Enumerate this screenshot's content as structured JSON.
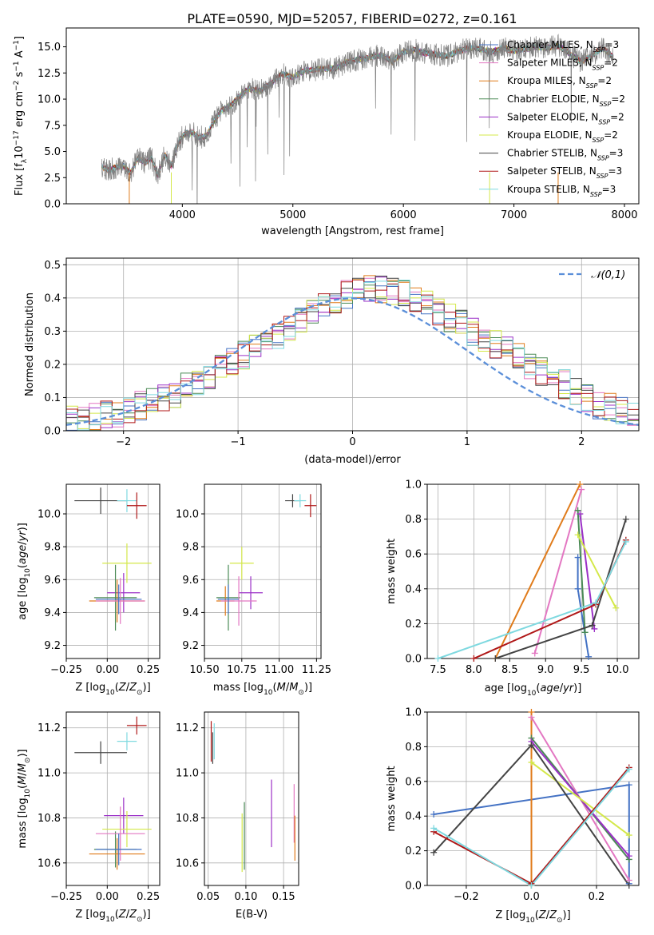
{
  "figure": {
    "title": "PLATE=0590, MJD=52057, FIBERID=0272, z=0.161"
  },
  "models": [
    {
      "label": "Chabrier MILES, N$_{SSP}$=3",
      "name": "Chabrier MILES",
      "nssp": "3",
      "color": "#4472c4"
    },
    {
      "label": "Salpeter MILES, N$_{SSP}$=2",
      "name": "Salpeter MILES",
      "nssp": "2",
      "color": "#e377c2"
    },
    {
      "label": "Kroupa MILES, N$_{SSP}$=2",
      "name": "Kroupa MILES",
      "nssp": "2",
      "color": "#e07b1a"
    },
    {
      "label": "Chabrier ELODIE, N$_{SSP}$=2",
      "name": "Chabrier ELODIE",
      "nssp": "2",
      "color": "#4a8a55"
    },
    {
      "label": "Salpeter ELODIE, N$_{SSP}$=2",
      "name": "Salpeter ELODIE",
      "nssp": "2",
      "color": "#9b30c7"
    },
    {
      "label": "Kroupa ELODIE, N$_{SSP}$=2",
      "name": "Kroupa ELODIE",
      "nssp": "2",
      "color": "#d4e84a"
    },
    {
      "label": "Chabrier STELIB, N$_{SSP}$=3",
      "name": "Chabrier STELIB",
      "nssp": "3",
      "color": "#444444"
    },
    {
      "label": "Salpeter STELIB, N$_{SSP}$=3",
      "name": "Salpeter STELIB",
      "nssp": "3",
      "color": "#b01818"
    },
    {
      "label": "Kroupa STELIB, N$_{SSP}$=3",
      "name": "Kroupa STELIB",
      "nssp": "3",
      "color": "#7fd9e0"
    }
  ],
  "chart_data": [
    {
      "id": "spectrum",
      "type": "line",
      "xlabel": "wavelength [Angstrom, rest frame]",
      "ylabel": "Flux [f_λ 10^-17 erg cm^-2 s^-1 A^-1]",
      "xlim": [
        2950,
        8130
      ],
      "ylim": [
        0,
        16.8
      ],
      "xticks": [
        4000,
        5000,
        6000,
        7000,
        8000
      ],
      "yticks": [
        0.0,
        2.5,
        5.0,
        7.5,
        10.0,
        12.5,
        15.0
      ],
      "ytick_labels": [
        "0.0",
        "2.5",
        "5.0",
        "7.5",
        "10.0",
        "12.5",
        "15.0"
      ],
      "grid": false,
      "legend": "upper right",
      "data_series": {
        "name": "data",
        "color": "#808080",
        "x": [
          3270,
          3330,
          3400,
          3470,
          3530,
          3600,
          3660,
          3720,
          3780,
          3840,
          3900,
          3960,
          4020,
          4090,
          4150,
          4220,
          4290,
          4360,
          4440,
          4520,
          4600,
          4700,
          4800,
          4900,
          5000,
          5100,
          5200,
          5300,
          5400,
          5500,
          5600,
          5700,
          5800,
          5900,
          6000,
          6100,
          6200,
          6300,
          6400,
          6500,
          6600,
          6700,
          6800,
          6900,
          7000,
          7100,
          7200,
          7300,
          7400,
          7500,
          7600,
          7700,
          7800,
          7900
        ],
        "y": [
          3.6,
          3.2,
          3.5,
          3.6,
          2.9,
          4.4,
          3.9,
          4.4,
          2.7,
          4.7,
          3.6,
          5.8,
          6.7,
          6.8,
          6.3,
          6.5,
          8.0,
          9.0,
          9.4,
          10.3,
          11.0,
          10.8,
          11.5,
          12.4,
          12.1,
          12.7,
          12.8,
          12.9,
          13.0,
          13.6,
          13.8,
          14.0,
          14.2,
          13.6,
          14.5,
          14.7,
          14.4,
          14.3,
          14.1,
          14.6,
          14.9,
          14.8,
          14.5,
          14.9,
          14.6,
          14.8,
          15.0,
          14.9,
          15.1,
          14.4,
          13.6,
          14.1,
          14.9,
          14.0
        ]
      }
    },
    {
      "id": "residual-histogram",
      "type": "histogram",
      "xlabel": "(data-model)/error",
      "ylabel": "Normed distribution",
      "xlim": [
        -2.5,
        2.5
      ],
      "ylim": [
        0,
        0.52
      ],
      "xticks": [
        -2,
        -1,
        0,
        1,
        2
      ],
      "xtick_labels": [
        "−2",
        "−1",
        "0",
        "1",
        "2"
      ],
      "yticks": [
        0.0,
        0.1,
        0.2,
        0.3,
        0.4,
        0.5
      ],
      "ytick_labels": [
        "0.0",
        "0.1",
        "0.2",
        "0.3",
        "0.4",
        "0.5"
      ],
      "grid": true,
      "legend": "upper right",
      "bin_width": 0.1,
      "bin_start": -2.5,
      "base_counts": [
        0.03,
        0.035,
        0.04,
        0.05,
        0.055,
        0.065,
        0.075,
        0.09,
        0.1,
        0.11,
        0.13,
        0.15,
        0.17,
        0.19,
        0.21,
        0.23,
        0.25,
        0.27,
        0.29,
        0.31,
        0.33,
        0.35,
        0.37,
        0.39,
        0.41,
        0.42,
        0.43,
        0.43,
        0.42,
        0.41,
        0.4,
        0.38,
        0.36,
        0.34,
        0.32,
        0.3,
        0.28,
        0.26,
        0.24,
        0.22,
        0.2,
        0.18,
        0.16,
        0.14,
        0.12,
        0.1,
        0.08,
        0.07,
        0.06,
        0.05
      ],
      "gaussian_label": "𝒩(0,1)",
      "gaussian_color": "#5b8fd9"
    },
    {
      "id": "age-vs-Z",
      "type": "scatter",
      "xlabel": "Z [log10(Z/Z_sun)]",
      "ylabel": "age  [log10(age/yr)]",
      "xlim": [
        -0.25,
        0.32
      ],
      "ylim": [
        9.12,
        10.18
      ],
      "xticks": [
        -0.25,
        0.0,
        0.25
      ],
      "xtick_labels": [
        "−0.25",
        "0.00",
        "0.25"
      ],
      "yticks": [
        9.2,
        9.4,
        9.6,
        9.8,
        10.0
      ],
      "ytick_labels": [
        "9.2",
        "9.4",
        "9.6",
        "9.8",
        "10.0"
      ],
      "grid": true,
      "points": [
        {
          "model": 6,
          "x": -0.04,
          "xerr": 0.16,
          "y": 10.08,
          "yerr": 0.08
        },
        {
          "model": 8,
          "x": 0.12,
          "xerr": 0.06,
          "y": 10.08,
          "yerr": 0.07
        },
        {
          "model": 7,
          "x": 0.18,
          "xerr": 0.06,
          "y": 10.05,
          "yerr": 0.08
        },
        {
          "model": 4,
          "x": 0.1,
          "xerr": 0.1,
          "y": 9.52,
          "yerr": 0.12
        },
        {
          "model": 5,
          "x": 0.12,
          "xerr": 0.15,
          "y": 9.7,
          "yerr": 0.12
        },
        {
          "model": 3,
          "x": 0.05,
          "xerr": 0.13,
          "y": 9.49,
          "yerr": 0.2
        },
        {
          "model": 2,
          "x": 0.06,
          "xerr": 0.17,
          "y": 9.47,
          "yerr": 0.13
        },
        {
          "model": 1,
          "x": 0.08,
          "xerr": 0.15,
          "y": 9.47,
          "yerr": 0.14
        },
        {
          "model": 0,
          "x": 0.07,
          "xerr": 0.14,
          "y": 9.48,
          "yerr": 0.09
        }
      ]
    },
    {
      "id": "age-vs-mass",
      "type": "scatter",
      "xlabel": "mass [log10(M/M_sun)]",
      "ylim": [
        9.12,
        10.18
      ],
      "xlim": [
        10.5,
        11.28
      ],
      "xticks": [
        10.5,
        10.75,
        11.0,
        11.25
      ],
      "xtick_labels": [
        "10.50",
        "10.75",
        "11.00",
        "11.25"
      ],
      "yticks": [
        9.2,
        9.4,
        9.6,
        9.8,
        10.0
      ],
      "ytick_labels": [
        "9.2",
        "9.4",
        "9.6",
        "9.8",
        "10.0"
      ],
      "grid": true,
      "points": [
        {
          "model": 6,
          "x": 11.09,
          "xerr": 0.05,
          "y": 10.08,
          "yerr": 0.04
        },
        {
          "model": 8,
          "x": 11.14,
          "xerr": 0.04,
          "y": 10.08,
          "yerr": 0.04
        },
        {
          "model": 7,
          "x": 11.21,
          "xerr": 0.04,
          "y": 10.05,
          "yerr": 0.07
        },
        {
          "model": 4,
          "x": 10.81,
          "xerr": 0.08,
          "y": 9.52,
          "yerr": 0.1
        },
        {
          "model": 5,
          "x": 10.75,
          "xerr": 0.08,
          "y": 9.7,
          "yerr": 0.1
        },
        {
          "model": 3,
          "x": 10.66,
          "xerr": 0.08,
          "y": 9.49,
          "yerr": 0.2
        },
        {
          "model": 2,
          "x": 10.64,
          "xerr": 0.06,
          "y": 9.47,
          "yerr": 0.09
        },
        {
          "model": 1,
          "x": 10.73,
          "xerr": 0.12,
          "y": 9.47,
          "yerr": 0.15
        },
        {
          "model": 0,
          "x": 10.66,
          "xerr": 0.07,
          "y": 9.48,
          "yerr": 0.09
        }
      ]
    },
    {
      "id": "weight-vs-age",
      "type": "line",
      "xlabel": "age  [log10(age/yr)]",
      "ylabel": "mass weight",
      "xlim": [
        7.35,
        10.3
      ],
      "ylim": [
        0,
        1.0
      ],
      "xticks": [
        7.5,
        8.0,
        8.5,
        9.0,
        9.5,
        10.0
      ],
      "xtick_labels": [
        "7.5",
        "8.0",
        "8.5",
        "9.0",
        "9.5",
        "10.0"
      ],
      "yticks": [
        0.0,
        0.2,
        0.4,
        0.6,
        0.8,
        1.0
      ],
      "ytick_labels": [
        "0.0",
        "0.2",
        "0.4",
        "0.6",
        "0.8",
        "1.0"
      ],
      "grid": true,
      "series": [
        {
          "model": 0,
          "x": [
            9.45,
            9.45,
            9.6
          ],
          "y": [
            0.58,
            0.4,
            0.01
          ]
        },
        {
          "model": 1,
          "x": [
            9.5,
            8.85
          ],
          "y": [
            0.97,
            0.03
          ]
        },
        {
          "model": 2,
          "x": [
            9.48,
            8.3
          ],
          "y": [
            1.0,
            0.0
          ]
        },
        {
          "model": 3,
          "x": [
            9.55,
            9.45
          ],
          "y": [
            0.15,
            0.85
          ]
        },
        {
          "model": 4,
          "x": [
            9.48,
            9.68
          ],
          "y": [
            0.83,
            0.17
          ]
        },
        {
          "model": 5,
          "x": [
            9.45,
            9.98
          ],
          "y": [
            0.71,
            0.29
          ]
        },
        {
          "model": 6,
          "x": [
            8.3,
            9.65,
            10.12
          ],
          "y": [
            0.0,
            0.19,
            0.8
          ]
        },
        {
          "model": 7,
          "x": [
            8.0,
            9.7,
            10.12
          ],
          "y": [
            0.0,
            0.31,
            0.68
          ]
        },
        {
          "model": 8,
          "x": [
            7.5,
            9.7,
            10.12
          ],
          "y": [
            0.0,
            0.32,
            0.67
          ]
        }
      ]
    },
    {
      "id": "mass-vs-Z",
      "type": "scatter",
      "xlabel": "Z [log10(Z/Z_sun)]",
      "ylabel": "mass [log10(M/M_sun)]",
      "xlim": [
        -0.25,
        0.32
      ],
      "ylim": [
        10.5,
        11.27
      ],
      "xticks": [
        -0.25,
        0.0,
        0.25
      ],
      "xtick_labels": [
        "−0.25",
        "0.00",
        "0.25"
      ],
      "yticks": [
        10.6,
        10.8,
        11.0,
        11.2
      ],
      "ytick_labels": [
        "10.6",
        "10.8",
        "11.0",
        "11.2"
      ],
      "grid": true,
      "points": [
        {
          "model": 6,
          "x": -0.04,
          "xerr": 0.16,
          "y": 11.09,
          "yerr": 0.05
        },
        {
          "model": 8,
          "x": 0.12,
          "xerr": 0.06,
          "y": 11.14,
          "yerr": 0.04
        },
        {
          "model": 7,
          "x": 0.18,
          "xerr": 0.06,
          "y": 11.21,
          "yerr": 0.04
        },
        {
          "model": 4,
          "x": 0.1,
          "xerr": 0.12,
          "y": 10.81,
          "yerr": 0.08
        },
        {
          "model": 5,
          "x": 0.12,
          "xerr": 0.15,
          "y": 10.75,
          "yerr": 0.08
        },
        {
          "model": 3,
          "x": 0.05,
          "xerr": 0.13,
          "y": 10.66,
          "yerr": 0.08
        },
        {
          "model": 2,
          "x": 0.06,
          "xerr": 0.17,
          "y": 10.64,
          "yerr": 0.07
        },
        {
          "model": 1,
          "x": 0.08,
          "xerr": 0.15,
          "y": 10.73,
          "yerr": 0.12
        },
        {
          "model": 0,
          "x": 0.07,
          "xerr": 0.14,
          "y": 10.66,
          "yerr": 0.07
        }
      ]
    },
    {
      "id": "mass-vs-ebv",
      "type": "scatter",
      "xlabel": "E(B-V)",
      "xlim": [
        0.045,
        0.17
      ],
      "ylim": [
        10.5,
        11.27
      ],
      "xticks": [
        0.05,
        0.1,
        0.15
      ],
      "xtick_labels": [
        "0.05",
        "0.10",
        "0.15"
      ],
      "yticks": [
        10.6,
        10.8,
        11.0,
        11.2
      ],
      "ytick_labels": [
        "10.6",
        "10.8",
        "11.0",
        "11.2"
      ],
      "grid": true,
      "points": [
        {
          "model": 7,
          "x": 0.054,
          "xerr": 0,
          "y": 11.14,
          "yerr": 0.09
        },
        {
          "model": 8,
          "x": 0.058,
          "xerr": 0,
          "y": 11.14,
          "yerr": 0.08
        },
        {
          "model": 6,
          "x": 0.056,
          "xerr": 0,
          "y": 11.11,
          "yerr": 0.07
        },
        {
          "model": 5,
          "x": 0.095,
          "xerr": 0,
          "y": 10.69,
          "yerr": 0.13
        },
        {
          "model": 3,
          "x": 0.098,
          "xerr": 0,
          "y": 10.72,
          "yerr": 0.15
        },
        {
          "model": 4,
          "x": 0.134,
          "xerr": 0,
          "y": 10.82,
          "yerr": 0.15
        },
        {
          "model": 1,
          "x": 0.164,
          "xerr": 0,
          "y": 10.82,
          "yerr": 0.13
        },
        {
          "model": 2,
          "x": 0.165,
          "xerr": 0,
          "y": 10.71,
          "yerr": 0.1
        }
      ]
    },
    {
      "id": "weight-vs-Z",
      "type": "line",
      "xlabel": "Z [log10(Z/Z_sun)]",
      "ylabel": "mass weight",
      "xlim": [
        -0.32,
        0.33
      ],
      "ylim": [
        0,
        1.0
      ],
      "xticks": [
        -0.2,
        0.0,
        0.2
      ],
      "xtick_labels": [
        "−0.2",
        "0.0",
        "0.2"
      ],
      "yticks": [
        0.0,
        0.2,
        0.4,
        0.6,
        0.8,
        1.0
      ],
      "ytick_labels": [
        "0.0",
        "0.2",
        "0.4",
        "0.6",
        "0.8",
        "1.0"
      ],
      "grid": true,
      "series": [
        {
          "model": 0,
          "x": [
            -0.3,
            0.3,
            0.3
          ],
          "y": [
            0.41,
            0.58,
            0.01
          ]
        },
        {
          "model": 1,
          "x": [
            0.0,
            0.3
          ],
          "y": [
            0.97,
            0.03
          ]
        },
        {
          "model": 2,
          "x": [
            0.0,
            0.0
          ],
          "y": [
            1.0,
            0.0
          ]
        },
        {
          "model": 3,
          "x": [
            0.0,
            0.3
          ],
          "y": [
            0.85,
            0.15
          ]
        },
        {
          "model": 4,
          "x": [
            0.0,
            0.3
          ],
          "y": [
            0.83,
            0.17
          ]
        },
        {
          "model": 5,
          "x": [
            0.0,
            0.3
          ],
          "y": [
            0.71,
            0.29
          ]
        },
        {
          "model": 6,
          "x": [
            -0.3,
            0.0,
            0.3
          ],
          "y": [
            0.19,
            0.81,
            0.0
          ]
        },
        {
          "model": 7,
          "x": [
            -0.3,
            0.0,
            0.3
          ],
          "y": [
            0.31,
            0.01,
            0.68
          ]
        },
        {
          "model": 8,
          "x": [
            -0.3,
            0.0,
            0.3
          ],
          "y": [
            0.33,
            0.0,
            0.67
          ]
        }
      ]
    }
  ]
}
